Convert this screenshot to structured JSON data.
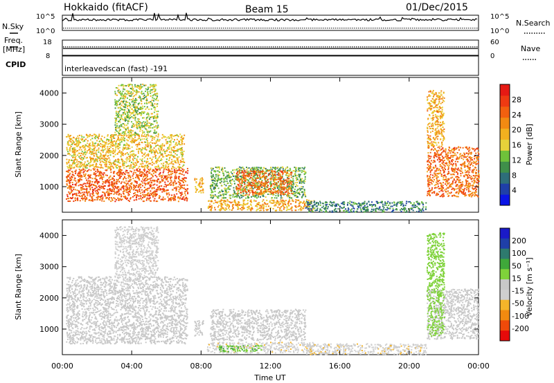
{
  "header": {
    "site": "Hokkaido (fitACF)",
    "beam": "Beam 15",
    "date": "01/Dec/2015"
  },
  "status_panels": {
    "nsky_label": "N.Sky",
    "nsearch_label": "N.Search",
    "nsky_ticks": [
      "10^5",
      "10^0"
    ],
    "nsearch_ticks": [
      "10^5",
      "10^0"
    ],
    "freq_label_line1": "Freq.",
    "freq_label_line2": "[MHz]",
    "freq_ticks": [
      "18",
      "8"
    ],
    "nave_label": "Nave",
    "nave_ticks": [
      "60",
      "0"
    ],
    "cpid_label": "CPID",
    "cpid_value": "interleavedscan (fast) -191"
  },
  "colors": {
    "power_scale": [
      "#0a14e6",
      "#1f3fa8",
      "#2e6e7a",
      "#3f8f4a",
      "#6fc23a",
      "#e6d23a",
      "#f2b01f",
      "#f28a12",
      "#f2600f",
      "#ee3a12",
      "#e61a14"
    ],
    "velocity_scale": [
      "#e60a0a",
      "#f04a0a",
      "#f28a10",
      "#f5b52a",
      "#cfcfcf",
      "#c8c8c8",
      "#7fd23a",
      "#3fa83a",
      "#2e7a6e",
      "#1f3fa8",
      "#1a1ac8"
    ],
    "grey": "#c8c8c8"
  },
  "chart_data": [
    {
      "type": "heatmap",
      "name": "power",
      "ylabel": "Slant Range [km]",
      "xlabel": "",
      "x_ticks": [
        "00:00",
        "04:00",
        "08:00",
        "12:00",
        "16:00",
        "20:00",
        "00:00"
      ],
      "xlim_hours": [
        0,
        24
      ],
      "y_ticks": [
        1000,
        2000,
        3000,
        4000
      ],
      "ylim": [
        180,
        4500
      ],
      "colorbar_label": "Power [dB]",
      "colorbar_ticks": [
        4,
        8,
        12,
        16,
        20,
        24,
        28
      ],
      "colorbar_range": [
        0,
        32
      ],
      "regions": [
        {
          "t0": 0.2,
          "t1": 7.2,
          "r0": 550,
          "r1": 1600,
          "value": 26
        },
        {
          "t0": 0.2,
          "t1": 7.0,
          "r0": 1600,
          "r1": 2700,
          "value": 18
        },
        {
          "t0": 3.0,
          "t1": 5.5,
          "r0": 2700,
          "r1": 4300,
          "value": 14
        },
        {
          "t0": 7.6,
          "t1": 8.1,
          "r0": 800,
          "r1": 1300,
          "value": 20
        },
        {
          "t0": 8.5,
          "t1": 14.0,
          "r0": 650,
          "r1": 1650,
          "value": 12
        },
        {
          "t0": 10.0,
          "t1": 13.2,
          "r0": 750,
          "r1": 1550,
          "value": 25
        },
        {
          "t0": 8.3,
          "t1": 14.5,
          "r0": 250,
          "r1": 600,
          "value": 20
        },
        {
          "t0": 14.0,
          "t1": 21.0,
          "r0": 200,
          "r1": 550,
          "value": 8
        },
        {
          "t0": 21.0,
          "t1": 24.0,
          "r0": 700,
          "r1": 2300,
          "value": 25
        },
        {
          "t0": 21.0,
          "t1": 22.0,
          "r0": 2300,
          "r1": 4100,
          "value": 20
        }
      ]
    },
    {
      "type": "heatmap",
      "name": "velocity",
      "ylabel": "Slant Range [km]",
      "xlabel": "Time UT",
      "x_ticks": [
        "00:00",
        "04:00",
        "08:00",
        "12:00",
        "16:00",
        "20:00",
        "00:00"
      ],
      "xlim_hours": [
        0,
        24
      ],
      "y_ticks": [
        1000,
        2000,
        3000,
        4000
      ],
      "ylim": [
        180,
        4500
      ],
      "colorbar_label": "Velocity [m s⁻¹]",
      "colorbar_ticks": [
        "200",
        "100",
        "50",
        "15",
        "-15",
        "-50",
        "-100",
        "-200"
      ],
      "colorbar_range": [
        -250,
        250
      ],
      "regions": [
        {
          "t0": 0.2,
          "t1": 7.2,
          "r0": 550,
          "r1": 2700,
          "value": 0
        },
        {
          "t0": 3.0,
          "t1": 5.5,
          "r0": 2700,
          "r1": 4300,
          "value": -40
        },
        {
          "t0": 7.6,
          "t1": 8.1,
          "r0": 800,
          "r1": 1300,
          "value": 0
        },
        {
          "t0": 8.5,
          "t1": 14.0,
          "r0": 650,
          "r1": 1650,
          "value": 0
        },
        {
          "t0": 8.3,
          "t1": 14.5,
          "r0": 250,
          "r1": 600,
          "value": -60
        },
        {
          "t0": 9.0,
          "t1": 11.5,
          "r0": 300,
          "r1": 500,
          "value": 70
        },
        {
          "t0": 14.0,
          "t1": 21.0,
          "r0": 200,
          "r1": 550,
          "value": -60
        },
        {
          "t0": 21.0,
          "t1": 24.0,
          "r0": 700,
          "r1": 2300,
          "value": 0
        },
        {
          "t0": 21.0,
          "t1": 22.0,
          "r0": 800,
          "r1": 4100,
          "value": 50
        }
      ]
    }
  ],
  "status_series": {
    "nsky_level": 0.7,
    "nsearch_level": 0.15,
    "freq_level": 0.55,
    "nave_level": 0.45
  }
}
